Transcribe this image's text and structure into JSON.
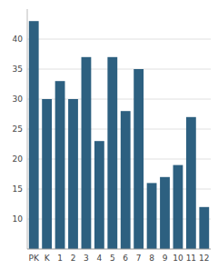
{
  "chart_data": {
    "type": "bar",
    "categories": [
      "PK",
      "K",
      "1",
      "2",
      "3",
      "4",
      "5",
      "6",
      "7",
      "8",
      "9",
      "10",
      "11",
      "12"
    ],
    "values": [
      43,
      30,
      33,
      30,
      37,
      23,
      37,
      28,
      35,
      16,
      17,
      19,
      27,
      12
    ],
    "color": "#2d6080",
    "ylim": [
      5,
      45
    ],
    "yticks": [
      10,
      15,
      20,
      25,
      30,
      35,
      40
    ],
    "grid": true
  }
}
